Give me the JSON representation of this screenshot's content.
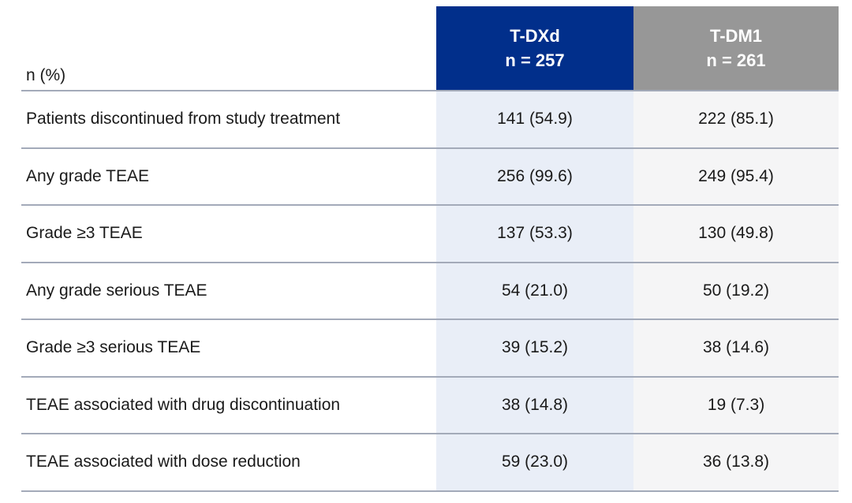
{
  "table": {
    "corner_header": "n (%)",
    "columns": [
      {
        "id": "tdxd",
        "title": "T-DXd",
        "subtitle": "n = 257"
      },
      {
        "id": "tdm1",
        "title": "T-DM1",
        "subtitle": "n = 261"
      }
    ],
    "rows": [
      {
        "label": "Patients discontinued from study treatment",
        "tdxd": "141 (54.9)",
        "tdm1": "222 (85.1)"
      },
      {
        "label": "Any grade TEAE",
        "tdxd": "256 (99.6)",
        "tdm1": "249 (95.4)"
      },
      {
        "label": "Grade ≥3 TEAE",
        "tdxd": "137 (53.3)",
        "tdm1": "130 (49.8)"
      },
      {
        "label": "Any grade serious TEAE",
        "tdxd": "54 (21.0)",
        "tdm1": "50 (19.2)"
      },
      {
        "label": "Grade ≥3 serious TEAE",
        "tdxd": "39 (15.2)",
        "tdm1": "38 (14.6)"
      },
      {
        "label": "TEAE associated with drug discontinuation",
        "tdxd": "38 (14.8)",
        "tdm1": "19 (7.3)"
      },
      {
        "label": "TEAE associated with dose reduction",
        "tdxd": "59 (23.0)",
        "tdm1": "36 (13.8)"
      }
    ]
  },
  "colors": {
    "tdxd_header_bg": "#012F8B",
    "tdm1_header_bg": "#979797",
    "tdxd_body_bg": "#E9EEF7",
    "tdm1_body_bg": "#F5F5F6",
    "divider": "#A3AAB9",
    "header_text": "#FFFFFF",
    "body_text": "#1A1A1A"
  }
}
